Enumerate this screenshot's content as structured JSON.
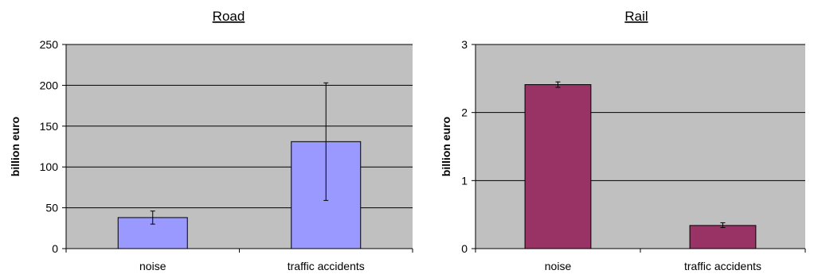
{
  "chart_data": [
    {
      "type": "bar",
      "title": "Road",
      "xlabel": "",
      "ylabel": "billion euro",
      "categories": [
        "noise",
        "traffic accidents"
      ],
      "values": [
        38,
        131
      ],
      "error_low": [
        30,
        59
      ],
      "error_high": [
        46,
        203
      ],
      "ylim": [
        0,
        250
      ],
      "yticks": [
        0,
        50,
        100,
        150,
        200,
        250
      ],
      "ytick_labels": [
        "0",
        "50",
        "100",
        "150",
        "200",
        "250"
      ],
      "grid": true,
      "legend": "none",
      "bar_color": "#9999ff",
      "plot_bg": "#c0c0c0"
    },
    {
      "type": "bar",
      "title": "Rail",
      "xlabel": "",
      "ylabel": "billion euro",
      "categories": [
        "noise",
        "traffic accidents"
      ],
      "values": [
        2.41,
        0.34
      ],
      "error_low": [
        2.37,
        0.31
      ],
      "error_high": [
        2.45,
        0.38
      ],
      "ylim": [
        0,
        3
      ],
      "yticks": [
        0,
        1,
        2,
        3
      ],
      "ytick_labels": [
        "0",
        "1",
        "2",
        "3"
      ],
      "grid": true,
      "legend": "none",
      "bar_color": "#993366",
      "plot_bg": "#c0c0c0"
    }
  ]
}
